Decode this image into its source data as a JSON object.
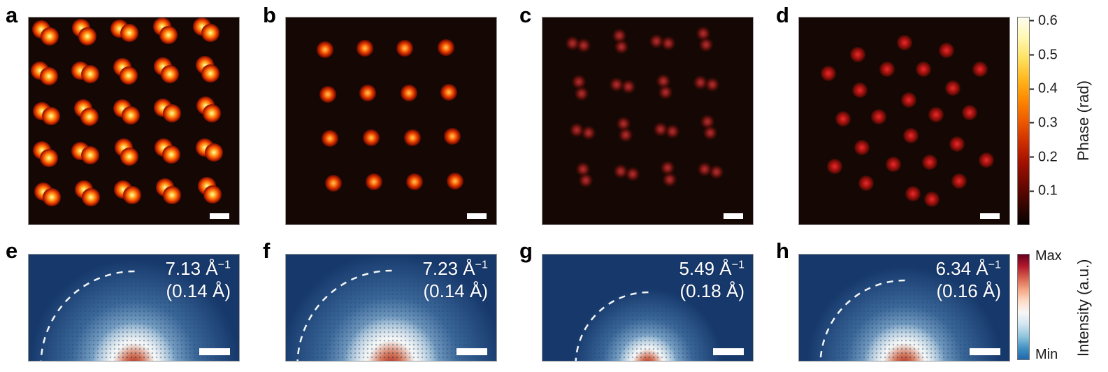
{
  "colors": {
    "top_panel_bg": "#150804",
    "bottom_panel_bg": "#16386b",
    "scalebar": "#ffffff",
    "annotation_text": "#ffffff",
    "arc_stroke": "#ffffff"
  },
  "colorbars": {
    "phase": {
      "label": "Phase (rad)",
      "ticks": [
        "0.6",
        "0.5",
        "0.4",
        "0.3",
        "0.2",
        "0.1"
      ],
      "tick_values": [
        0.6,
        0.5,
        0.4,
        0.3,
        0.2,
        0.1
      ],
      "vmax": 0.612,
      "colors": [
        "#050200",
        "#3a0500",
        "#6e0900",
        "#a31000",
        "#cf2f00",
        "#ee5a00",
        "#fd8700",
        "#ffb71c",
        "#ffe060",
        "#fff7b0",
        "#fffdf0"
      ]
    },
    "intensity": {
      "label": "Intensity (a.u.)",
      "max_label": "Max",
      "min_label": "Min",
      "colors": [
        "#67001f",
        "#b2182b",
        "#d6604d",
        "#f4a582",
        "#fddbc7",
        "#f7f7f7",
        "#d1e5f0",
        "#92c5de",
        "#4393c3",
        "#2166ac"
      ]
    }
  },
  "dot_styles": {
    "a": {
      "size": 26,
      "stops": "rgba(255,247,205,1) 0%, #ffd859 12%, #ff9e22 26%, #f04a00 46%, #8f1200 66%, rgba(40,5,0,0) 82%"
    },
    "b": {
      "size": 24,
      "stops": "#ffc469 0%, #ff8c1f 18%, #e33c00 40%, #7d0e00 64%, rgba(30,4,0,0) 80%"
    },
    "c": {
      "size": 20,
      "stops": "rgba(194,55,55,0.9) 0%, rgba(158,32,32,0.85) 28%, rgba(92,13,8,0.6) 55%, rgba(40,6,3,0) 78%"
    },
    "d": {
      "size": 22,
      "stops": "#e03030 0%, #c01818 24%, #6e0c06 55%, rgba(35,5,3,0) 78%"
    }
  },
  "panels_top": [
    {
      "label": "a",
      "pattern": "pairs",
      "dot_style": "a",
      "pair_sep": 15,
      "sites": [
        [
          8,
          7.5,
          40
        ],
        [
          26.5,
          7,
          55
        ],
        [
          45.5,
          6.5,
          25
        ],
        [
          65,
          6.5,
          55
        ],
        [
          84.5,
          6,
          35
        ],
        [
          7.5,
          27,
          30
        ],
        [
          27,
          26.5,
          20
        ],
        [
          46,
          26,
          50
        ],
        [
          65.5,
          25.5,
          45
        ],
        [
          85,
          25,
          60
        ],
        [
          8.5,
          46.5,
          25
        ],
        [
          27.5,
          46,
          55
        ],
        [
          46.5,
          45.5,
          40
        ],
        [
          66,
          45,
          30
        ],
        [
          85.5,
          44.5,
          50
        ],
        [
          8,
          66,
          45
        ],
        [
          27,
          65.5,
          25
        ],
        [
          46.5,
          65,
          55
        ],
        [
          66,
          64.5,
          40
        ],
        [
          86,
          64,
          30
        ],
        [
          9,
          85.5,
          35
        ],
        [
          28,
          85,
          50
        ],
        [
          47,
          84.5,
          30
        ],
        [
          66.5,
          84,
          45
        ],
        [
          86,
          83.5,
          55
        ]
      ]
    },
    {
      "label": "b",
      "pattern": "single",
      "dot_style": "b",
      "sites": [
        [
          18.5,
          15.5
        ],
        [
          37.5,
          15
        ],
        [
          56.5,
          15
        ],
        [
          76,
          14.5
        ],
        [
          20,
          37
        ],
        [
          39,
          36.5
        ],
        [
          58.5,
          36.5
        ],
        [
          77.5,
          36
        ],
        [
          21,
          58.5
        ],
        [
          40.5,
          58
        ],
        [
          60,
          58
        ],
        [
          79,
          57.5
        ],
        [
          22.5,
          80
        ],
        [
          42,
          79.5
        ],
        [
          61,
          79.5
        ],
        [
          80.5,
          79
        ]
      ]
    },
    {
      "label": "c",
      "pattern": "pairs",
      "dot_style": "c",
      "pair_sep": 17,
      "sites": [
        [
          17,
          13,
          12
        ],
        [
          37,
          11.5,
          78
        ],
        [
          57,
          12,
          12
        ],
        [
          77,
          10.5,
          78
        ],
        [
          18,
          34,
          78
        ],
        [
          38,
          33,
          12
        ],
        [
          58,
          33.5,
          78
        ],
        [
          78,
          32,
          12
        ],
        [
          19,
          55,
          12
        ],
        [
          39,
          54,
          78
        ],
        [
          59,
          54.5,
          12
        ],
        [
          79,
          53,
          78
        ],
        [
          20,
          76,
          78
        ],
        [
          40,
          75,
          12
        ],
        [
          60,
          75.5,
          78
        ],
        [
          80,
          74,
          12
        ]
      ]
    },
    {
      "label": "d",
      "pattern": "single",
      "dot_style": "d",
      "sites": [
        [
          50,
          12
        ],
        [
          28,
          18
        ],
        [
          70,
          16
        ],
        [
          14,
          27
        ],
        [
          42,
          25
        ],
        [
          59,
          25
        ],
        [
          86,
          25
        ],
        [
          29,
          35
        ],
        [
          73,
          34
        ],
        [
          52,
          40
        ],
        [
          21,
          49
        ],
        [
          38,
          48
        ],
        [
          65,
          47
        ],
        [
          81,
          46
        ],
        [
          53,
          57
        ],
        [
          30,
          63
        ],
        [
          75,
          61
        ],
        [
          17,
          72
        ],
        [
          45,
          71
        ],
        [
          62,
          70
        ],
        [
          89,
          69
        ],
        [
          32,
          80
        ],
        [
          76,
          79
        ],
        [
          54,
          85
        ],
        [
          63,
          88
        ]
      ]
    }
  ],
  "panels_bottom": [
    {
      "label": "e",
      "annotation_value": "7.13 Å",
      "annotation_sup": "−1",
      "annotation_line2": "(0.14 Å)",
      "arc_radius": 134,
      "blob": {
        "haze": 150,
        "white": 60,
        "core": 30
      }
    },
    {
      "label": "f",
      "annotation_value": "7.23 Å",
      "annotation_sup": "−1",
      "annotation_line2": "(0.14 Å)",
      "arc_radius": 135,
      "blob": {
        "haze": 160,
        "white": 68,
        "core": 34
      }
    },
    {
      "label": "g",
      "annotation_value": "5.49 Å",
      "annotation_sup": "−1",
      "annotation_line2": "(0.18 Å)",
      "arc_radius": 104,
      "blob": {
        "haze": 108,
        "white": 42,
        "core": 22
      }
    },
    {
      "label": "h",
      "annotation_value": "6.34 Å",
      "annotation_sup": "−1",
      "annotation_line2": "(0.16 Å)",
      "arc_radius": 121,
      "blob": {
        "haze": 140,
        "white": 58,
        "core": 30
      }
    }
  ]
}
